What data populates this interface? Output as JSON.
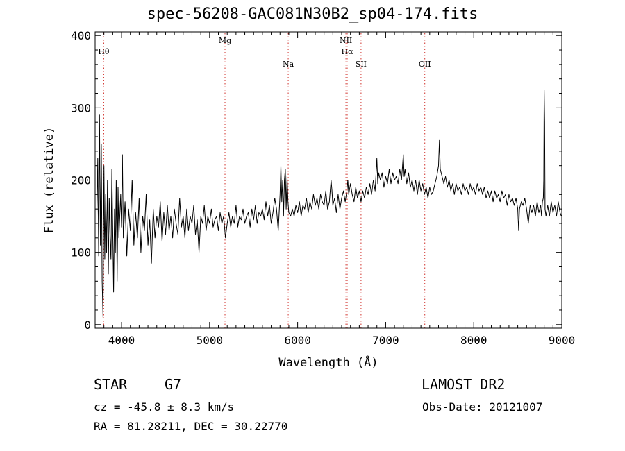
{
  "chart_data": {
    "type": "line",
    "title": "spec-56208-GAC081N30B2_sp04-174.fits",
    "xlabel": "Wavelength (Å)",
    "ylabel": "Flux (relative)",
    "xlim": [
      3700,
      9000
    ],
    "ylim": [
      -5,
      405
    ],
    "x_ticks": [
      4000,
      5000,
      6000,
      7000,
      8000,
      9000
    ],
    "y_ticks": [
      0,
      100,
      200,
      300,
      400
    ],
    "line_color": "#000000",
    "marker_color": "#d0302a",
    "series": [
      {
        "values": [
          [
            3720,
            150
          ],
          [
            3730,
            230
          ],
          [
            3740,
            95
          ],
          [
            3750,
            290
          ],
          [
            3760,
            110
          ],
          [
            3770,
            250
          ],
          [
            3780,
            60
          ],
          [
            3790,
            10
          ],
          [
            3800,
            220
          ],
          [
            3810,
            90
          ],
          [
            3820,
            180
          ],
          [
            3830,
            100
          ],
          [
            3840,
            200
          ],
          [
            3850,
            70
          ],
          [
            3860,
            175
          ],
          [
            3870,
            120
          ],
          [
            3880,
            90
          ],
          [
            3890,
            215
          ],
          [
            3900,
            130
          ],
          [
            3910,
            45
          ],
          [
            3920,
            160
          ],
          [
            3930,
            100
          ],
          [
            3940,
            200
          ],
          [
            3950,
            60
          ],
          [
            3960,
            190
          ],
          [
            3970,
            120
          ],
          [
            3980,
            150
          ],
          [
            3990,
            180
          ],
          [
            4000,
            135
          ],
          [
            4010,
            235
          ],
          [
            4020,
            120
          ],
          [
            4040,
            170
          ],
          [
            4060,
            95
          ],
          [
            4080,
            160
          ],
          [
            4100,
            130
          ],
          [
            4120,
            200
          ],
          [
            4140,
            110
          ],
          [
            4160,
            155
          ],
          [
            4180,
            120
          ],
          [
            4200,
            175
          ],
          [
            4220,
            100
          ],
          [
            4240,
            150
          ],
          [
            4260,
            130
          ],
          [
            4280,
            180
          ],
          [
            4300,
            110
          ],
          [
            4320,
            145
          ],
          [
            4340,
            85
          ],
          [
            4360,
            160
          ],
          [
            4380,
            120
          ],
          [
            4400,
            150
          ],
          [
            4420,
            135
          ],
          [
            4440,
            170
          ],
          [
            4460,
            115
          ],
          [
            4480,
            155
          ],
          [
            4500,
            125
          ],
          [
            4520,
            165
          ],
          [
            4540,
            130
          ],
          [
            4560,
            150
          ],
          [
            4580,
            120
          ],
          [
            4600,
            160
          ],
          [
            4620,
            140
          ],
          [
            4640,
            125
          ],
          [
            4660,
            175
          ],
          [
            4680,
            135
          ],
          [
            4700,
            150
          ],
          [
            4720,
            120
          ],
          [
            4740,
            160
          ],
          [
            4760,
            130
          ],
          [
            4780,
            150
          ],
          [
            4800,
            140
          ],
          [
            4820,
            165
          ],
          [
            4840,
            125
          ],
          [
            4860,
            145
          ],
          [
            4880,
            100
          ],
          [
            4900,
            150
          ],
          [
            4920,
            140
          ],
          [
            4940,
            165
          ],
          [
            4960,
            130
          ],
          [
            4980,
            150
          ],
          [
            5000,
            140
          ],
          [
            5020,
            160
          ],
          [
            5040,
            135
          ],
          [
            5060,
            145
          ],
          [
            5080,
            150
          ],
          [
            5100,
            130
          ],
          [
            5120,
            155
          ],
          [
            5140,
            140
          ],
          [
            5160,
            150
          ],
          [
            5180,
            120
          ],
          [
            5200,
            140
          ],
          [
            5220,
            155
          ],
          [
            5240,
            135
          ],
          [
            5260,
            150
          ],
          [
            5280,
            140
          ],
          [
            5300,
            165
          ],
          [
            5320,
            135
          ],
          [
            5340,
            150
          ],
          [
            5360,
            145
          ],
          [
            5380,
            160
          ],
          [
            5400,
            140
          ],
          [
            5420,
            150
          ],
          [
            5440,
            155
          ],
          [
            5460,
            135
          ],
          [
            5480,
            160
          ],
          [
            5500,
            145
          ],
          [
            5520,
            165
          ],
          [
            5540,
            140
          ],
          [
            5560,
            155
          ],
          [
            5580,
            150
          ],
          [
            5600,
            160
          ],
          [
            5620,
            145
          ],
          [
            5640,
            170
          ],
          [
            5660,
            150
          ],
          [
            5680,
            165
          ],
          [
            5700,
            140
          ],
          [
            5720,
            155
          ],
          [
            5740,
            175
          ],
          [
            5760,
            160
          ],
          [
            5780,
            130
          ],
          [
            5800,
            180
          ],
          [
            5810,
            220
          ],
          [
            5820,
            170
          ],
          [
            5830,
            200
          ],
          [
            5840,
            150
          ],
          [
            5850,
            200
          ],
          [
            5860,
            215
          ],
          [
            5870,
            160
          ],
          [
            5880,
            205
          ],
          [
            5890,
            170
          ],
          [
            5900,
            155
          ],
          [
            5920,
            150
          ],
          [
            5940,
            160
          ],
          [
            5960,
            150
          ],
          [
            5980,
            165
          ],
          [
            6000,
            155
          ],
          [
            6020,
            170
          ],
          [
            6040,
            150
          ],
          [
            6060,
            165
          ],
          [
            6080,
            160
          ],
          [
            6100,
            175
          ],
          [
            6120,
            155
          ],
          [
            6140,
            170
          ],
          [
            6160,
            160
          ],
          [
            6180,
            180
          ],
          [
            6200,
            165
          ],
          [
            6220,
            175
          ],
          [
            6240,
            160
          ],
          [
            6260,
            180
          ],
          [
            6280,
            170
          ],
          [
            6300,
            165
          ],
          [
            6320,
            185
          ],
          [
            6340,
            160
          ],
          [
            6360,
            170
          ],
          [
            6380,
            200
          ],
          [
            6390,
            185
          ],
          [
            6400,
            165
          ],
          [
            6420,
            175
          ],
          [
            6440,
            155
          ],
          [
            6460,
            180
          ],
          [
            6480,
            160
          ],
          [
            6500,
            175
          ],
          [
            6520,
            185
          ],
          [
            6540,
            170
          ],
          [
            6560,
            185
          ],
          [
            6570,
            200
          ],
          [
            6580,
            180
          ],
          [
            6600,
            195
          ],
          [
            6620,
            180
          ],
          [
            6640,
            170
          ],
          [
            6660,
            190
          ],
          [
            6680,
            175
          ],
          [
            6700,
            185
          ],
          [
            6720,
            170
          ],
          [
            6740,
            185
          ],
          [
            6760,
            175
          ],
          [
            6780,
            190
          ],
          [
            6800,
            180
          ],
          [
            6820,
            195
          ],
          [
            6840,
            180
          ],
          [
            6860,
            200
          ],
          [
            6880,
            185
          ],
          [
            6900,
            230
          ],
          [
            6910,
            195
          ],
          [
            6920,
            210
          ],
          [
            6940,
            200
          ],
          [
            6960,
            210
          ],
          [
            6980,
            190
          ],
          [
            7000,
            205
          ],
          [
            7020,
            195
          ],
          [
            7040,
            215
          ],
          [
            7060,
            195
          ],
          [
            7080,
            210
          ],
          [
            7100,
            200
          ],
          [
            7120,
            205
          ],
          [
            7140,
            195
          ],
          [
            7160,
            215
          ],
          [
            7180,
            200
          ],
          [
            7200,
            235
          ],
          [
            7210,
            205
          ],
          [
            7220,
            215
          ],
          [
            7240,
            195
          ],
          [
            7260,
            210
          ],
          [
            7280,
            190
          ],
          [
            7300,
            200
          ],
          [
            7320,
            185
          ],
          [
            7340,
            200
          ],
          [
            7360,
            180
          ],
          [
            7380,
            200
          ],
          [
            7400,
            185
          ],
          [
            7420,
            195
          ],
          [
            7440,
            180
          ],
          [
            7460,
            190
          ],
          [
            7480,
            175
          ],
          [
            7500,
            190
          ],
          [
            7520,
            180
          ],
          [
            7540,
            185
          ],
          [
            7560,
            195
          ],
          [
            7580,
            205
          ],
          [
            7600,
            220
          ],
          [
            7610,
            255
          ],
          [
            7620,
            215
          ],
          [
            7640,
            205
          ],
          [
            7660,
            195
          ],
          [
            7680,
            205
          ],
          [
            7700,
            190
          ],
          [
            7720,
            200
          ],
          [
            7740,
            185
          ],
          [
            7760,
            195
          ],
          [
            7780,
            180
          ],
          [
            7800,
            195
          ],
          [
            7820,
            185
          ],
          [
            7840,
            190
          ],
          [
            7860,
            180
          ],
          [
            7880,
            195
          ],
          [
            7900,
            185
          ],
          [
            7920,
            190
          ],
          [
            7940,
            180
          ],
          [
            7960,
            195
          ],
          [
            7980,
            185
          ],
          [
            8000,
            190
          ],
          [
            8020,
            180
          ],
          [
            8040,
            195
          ],
          [
            8060,
            185
          ],
          [
            8080,
            190
          ],
          [
            8100,
            180
          ],
          [
            8120,
            190
          ],
          [
            8140,
            175
          ],
          [
            8160,
            185
          ],
          [
            8180,
            175
          ],
          [
            8200,
            185
          ],
          [
            8220,
            170
          ],
          [
            8240,
            185
          ],
          [
            8260,
            175
          ],
          [
            8280,
            180
          ],
          [
            8300,
            170
          ],
          [
            8320,
            185
          ],
          [
            8340,
            175
          ],
          [
            8360,
            180
          ],
          [
            8380,
            165
          ],
          [
            8400,
            180
          ],
          [
            8420,
            170
          ],
          [
            8440,
            175
          ],
          [
            8460,
            165
          ],
          [
            8480,
            175
          ],
          [
            8500,
            160
          ],
          [
            8510,
            130
          ],
          [
            8520,
            160
          ],
          [
            8540,
            170
          ],
          [
            8560,
            165
          ],
          [
            8580,
            175
          ],
          [
            8600,
            160
          ],
          [
            8620,
            140
          ],
          [
            8640,
            165
          ],
          [
            8660,
            155
          ],
          [
            8680,
            165
          ],
          [
            8700,
            150
          ],
          [
            8720,
            170
          ],
          [
            8740,
            155
          ],
          [
            8760,
            165
          ],
          [
            8770,
            150
          ],
          [
            8780,
            170
          ],
          [
            8790,
            175
          ],
          [
            8795,
            200
          ],
          [
            8800,
            325
          ],
          [
            8805,
            280
          ],
          [
            8810,
            160
          ],
          [
            8820,
            150
          ],
          [
            8840,
            165
          ],
          [
            8860,
            150
          ],
          [
            8880,
            170
          ],
          [
            8900,
            155
          ],
          [
            8920,
            165
          ],
          [
            8940,
            150
          ],
          [
            8960,
            170
          ],
          [
            8980,
            155
          ],
          [
            8995,
            150
          ]
        ]
      }
    ],
    "line_markers": [
      {
        "label": "Hθ",
        "x": 3798,
        "label_row": "upper"
      },
      {
        "label": "Mg",
        "x": 5175,
        "label_row": "top"
      },
      {
        "label": "Na",
        "x": 5893,
        "label_row": "lower"
      },
      {
        "label": "NII",
        "x": 6548,
        "label_row": "top"
      },
      {
        "label": "Hα",
        "x": 6563,
        "label_row": "upper"
      },
      {
        "label": "SII",
        "x": 6720,
        "label_row": "lower"
      },
      {
        "label": "OII",
        "x": 7444,
        "label_row": "lower"
      }
    ]
  },
  "info": {
    "object_class": "STAR",
    "subclass": "G7",
    "survey": "LAMOST DR2",
    "redshift_text": "cz = -45.8 ± 8.3 km/s",
    "obs_date_text": "Obs-Date: 20121007",
    "coords_text": "RA =  81.28211, DEC =  30.22770"
  }
}
